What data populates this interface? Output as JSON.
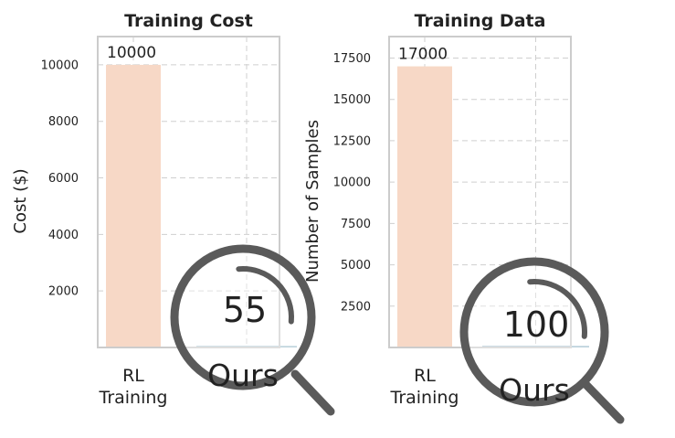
{
  "chart_data": [
    {
      "type": "bar",
      "title": "Training Cost",
      "ylabel": "Cost ($)",
      "xlabel": "",
      "categories": [
        "RL\nTraining",
        "Ours"
      ],
      "values": [
        10000,
        55
      ],
      "data_labels": [
        "10000",
        "55"
      ],
      "ylim": [
        0,
        11000
      ],
      "yticks": [
        2000,
        4000,
        6000,
        8000,
        10000
      ],
      "grid": true,
      "colors": [
        "#f7d8c6",
        "#9dbdcb"
      ],
      "annotation": "magnifier-over-ours"
    },
    {
      "type": "bar",
      "title": "Training Data",
      "ylabel": "Number of Samples",
      "xlabel": "",
      "categories": [
        "RL\nTraining",
        "Ours"
      ],
      "values": [
        17000,
        100
      ],
      "data_labels": [
        "17000",
        "100"
      ],
      "ylim": [
        0,
        18800
      ],
      "yticks": [
        2500,
        5000,
        7500,
        10000,
        12500,
        15000,
        17500
      ],
      "grid": true,
      "colors": [
        "#f7d8c6",
        "#9dbdcb"
      ],
      "annotation": "magnifier-over-ours"
    }
  ]
}
